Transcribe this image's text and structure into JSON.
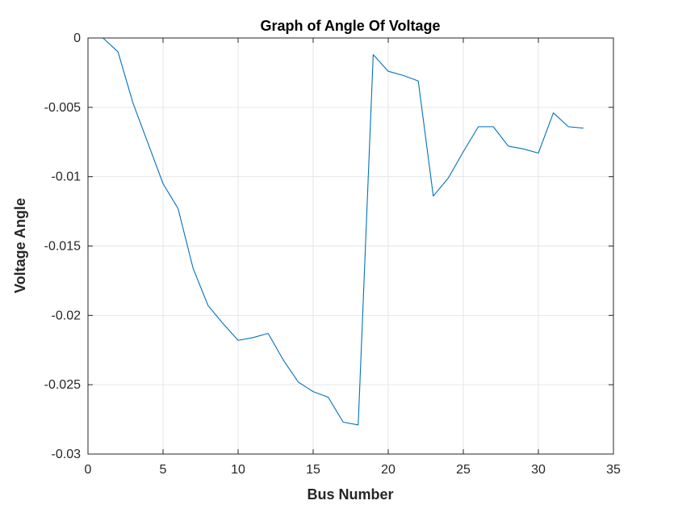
{
  "chart_data": {
    "type": "line",
    "title": "Graph of Angle Of Voltage",
    "xlabel": "Bus Number",
    "ylabel": "Voltage Angle",
    "xlim": [
      0,
      35
    ],
    "ylim": [
      -0.03,
      0
    ],
    "xticks": [
      0,
      5,
      10,
      15,
      20,
      25,
      30,
      35
    ],
    "xtick_labels": [
      "0",
      "5",
      "10",
      "15",
      "20",
      "25",
      "30",
      "35"
    ],
    "yticks": [
      0,
      -0.005,
      -0.01,
      -0.015,
      -0.02,
      -0.025,
      -0.03
    ],
    "ytick_labels": [
      "0",
      "-0.005",
      "-0.01",
      "-0.015",
      "-0.02",
      "-0.025",
      "-0.03"
    ],
    "grid": true,
    "colors": {
      "line": "#0072BD",
      "grid": "#e6e6e6",
      "axis": "#262626"
    },
    "series": [
      {
        "x": [
          1,
          2,
          3,
          4,
          5,
          6,
          7,
          8,
          9,
          10,
          11,
          12,
          13,
          14,
          15,
          16,
          17,
          18,
          19,
          20,
          21,
          22,
          23,
          24,
          25,
          26,
          27,
          28,
          29,
          30,
          31,
          32,
          33
        ],
        "values": [
          0,
          -0.001,
          -0.0047,
          -0.0076,
          -0.0105,
          -0.0123,
          -0.0166,
          -0.0193,
          -0.0206,
          -0.0218,
          -0.0216,
          -0.0213,
          -0.0232,
          -0.0248,
          -0.0255,
          -0.0259,
          -0.0277,
          -0.0279,
          -0.0012,
          -0.0024,
          -0.0027,
          -0.0031,
          -0.0114,
          -0.0101,
          -0.0082,
          -0.0064,
          -0.0064,
          -0.0078,
          -0.008,
          -0.0083,
          -0.0054,
          -0.0064,
          -0.0065
        ]
      }
    ]
  }
}
